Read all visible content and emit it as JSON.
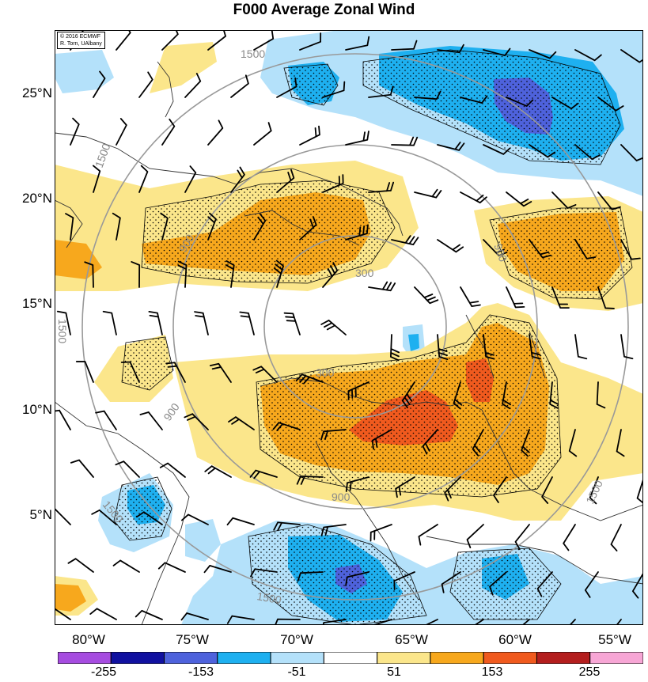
{
  "title": "F000 Average Zonal Wind",
  "credit": {
    "line1": "© 2016 ECMWF",
    "line2": "R. Torn, UAlbany"
  },
  "latitude_labels": [
    "25°N",
    "20°N",
    "15°N",
    "10°N",
    "5°N"
  ],
  "longitude_labels": [
    "80°W",
    "75°W",
    "70°W",
    "65°W",
    "60°W",
    "55°W"
  ],
  "colorbar": {
    "tick_labels": [
      "-255",
      "-153",
      "-51",
      "51",
      "153",
      "255"
    ],
    "colors": [
      "#a64ce0",
      "#1111a0",
      "#4e62dc",
      "#1eb0f0",
      "#b4e1fa",
      "#ffffff",
      "#fbe68b",
      "#f7a81d",
      "#f05a1e",
      "#b41e1e",
      "#f7a6d5"
    ]
  },
  "contour_labels": {
    "c300a": "300",
    "c300b": "300",
    "c900a": "900",
    "c900b": "900",
    "c900c": "900",
    "c900d": "900",
    "c1500a": "1500",
    "c1500b": "1500",
    "c1500c": "1500",
    "c1500d": "1500",
    "c1500e": "1500",
    "c1500f": "1500"
  },
  "colors": {
    "pos_light": "#fbe68b",
    "pos_mid": "#f7a81d",
    "pos_strong": "#f05a1e",
    "neg_light": "#b4e1fa",
    "neg_mid": "#1eb0f0",
    "neg_strong": "#4e62dc",
    "range_rings": "#999999",
    "coastline": "#333333"
  }
}
